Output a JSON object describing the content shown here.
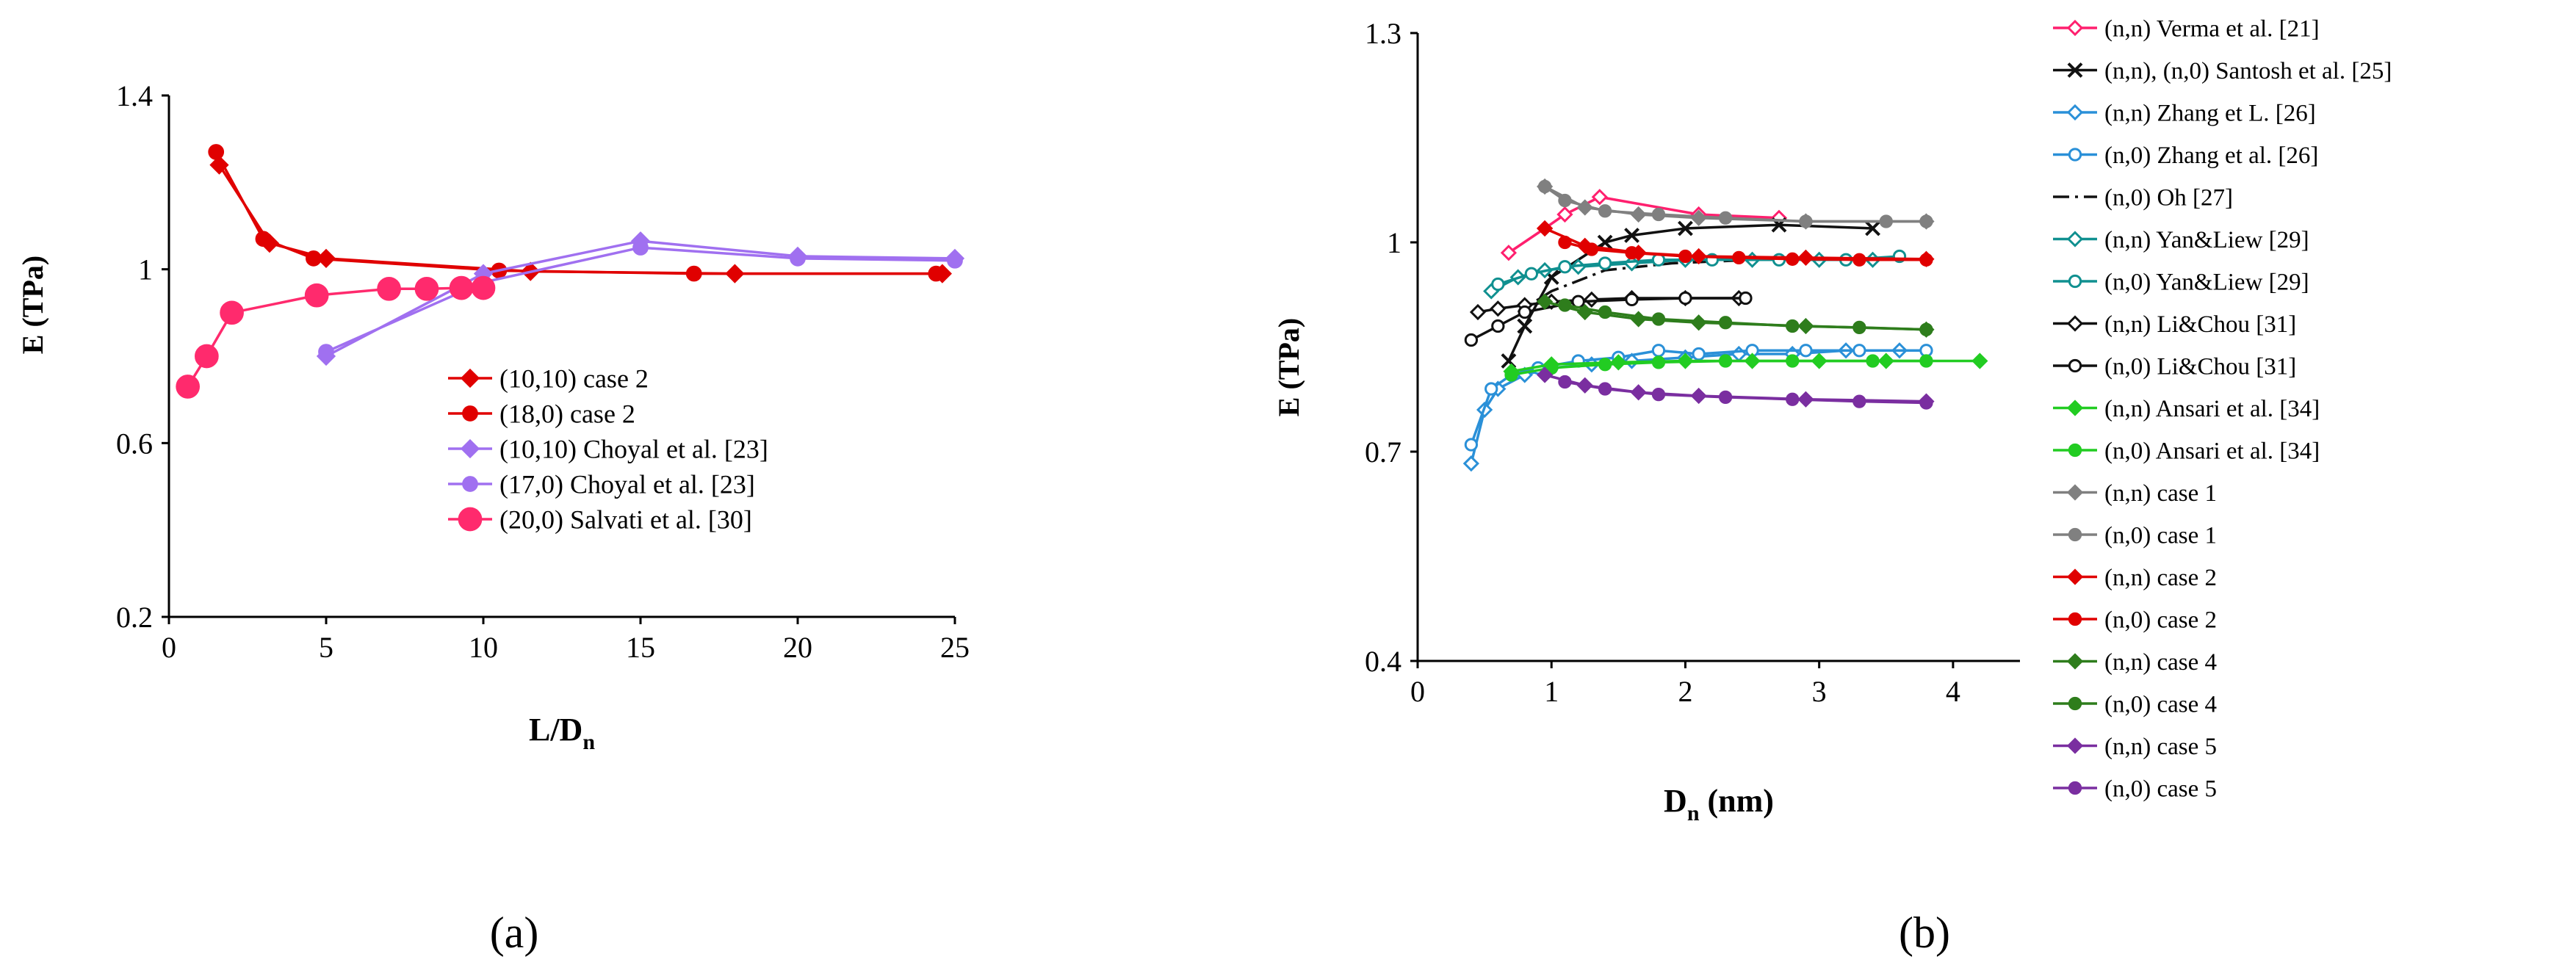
{
  "panels": [
    {
      "label": "(a)",
      "xlabel_main": "L/D",
      "xlabel_sub": "n",
      "ylabel": "E (TPa)",
      "legend_position": "inside-right",
      "chart_data": {
        "type": "line",
        "xlim": [
          0,
          25
        ],
        "ylim": [
          0.2,
          1.4
        ],
        "xticks": [
          0,
          5,
          10,
          15,
          20,
          25
        ],
        "yticks": [
          0.2,
          0.6,
          1,
          1.4
        ],
        "xtick_labels": [
          "0",
          "5",
          "10",
          "15",
          "20",
          "25"
        ],
        "ytick_labels": [
          "0.2",
          "0.6",
          "1",
          "1.4"
        ],
        "grid": false,
        "series": [
          {
            "name": "(10,10) case 2",
            "color": "#e00000",
            "marker": "diamond",
            "x": [
              1.6,
              3.2,
              5.0,
              11.5,
              18.0,
              24.6
            ],
            "y": [
              1.24,
              1.06,
              1.025,
              0.995,
              0.99,
              0.99
            ]
          },
          {
            "name": "(18,0) case 2",
            "color": "#e00000",
            "marker": "circle",
            "x": [
              1.5,
              3.0,
              4.6,
              10.5,
              16.7,
              24.4
            ],
            "y": [
              1.27,
              1.07,
              1.025,
              0.997,
              0.99,
              0.99
            ]
          },
          {
            "name": "(10,10) Choyal et al. [23]",
            "color": "#a070f0",
            "marker": "diamond",
            "x": [
              5,
              10,
              15,
              20,
              25
            ],
            "y": [
              0.8,
              0.99,
              1.065,
              1.03,
              1.025
            ]
          },
          {
            "name": "(17,0)  Choyal et al. [23]",
            "color": "#a070f0",
            "marker": "circle",
            "x": [
              5,
              10,
              15,
              20,
              25
            ],
            "y": [
              0.81,
              0.97,
              1.05,
              1.025,
              1.02
            ]
          },
          {
            "name": "(20,0)  Salvati et al. [30]",
            "color": "#ff2a6d",
            "marker": "circle-large",
            "x": [
              0.6,
              1.2,
              2.0,
              4.7,
              7.0,
              8.2,
              9.3,
              10.0
            ],
            "y": [
              0.73,
              0.8,
              0.9,
              0.94,
              0.955,
              0.955,
              0.957,
              0.957
            ]
          }
        ]
      }
    },
    {
      "label": "(b)",
      "xlabel_main": "D",
      "xlabel_sub": "n",
      "xlabel_suffix": " (nm)",
      "ylabel": "E (TPa)",
      "legend_position": "right",
      "chart_data": {
        "type": "line",
        "xlim": [
          0,
          4.5
        ],
        "ylim": [
          0.4,
          1.3
        ],
        "xticks": [
          0,
          1,
          2,
          3,
          4
        ],
        "yticks": [
          0.4,
          0.7,
          1,
          1.3
        ],
        "xtick_labels": [
          "0",
          "1",
          "2",
          "3",
          "4"
        ],
        "ytick_labels": [
          "0.4",
          "0.7",
          "1",
          "1.3"
        ],
        "grid": false,
        "series": [
          {
            "name": "(n,n) Verma et al. [21]",
            "color": "#ff1f6e",
            "marker": "diamond-open",
            "x": [
              0.68,
              0.95,
              1.1,
              1.36,
              2.1,
              2.7
            ],
            "y": [
              0.985,
              1.02,
              1.04,
              1.065,
              1.04,
              1.035
            ]
          },
          {
            "name": "(n,n), (n,0) Santosh et al. [25]",
            "color": "#111111",
            "marker": "cross",
            "x": [
              0.68,
              0.8,
              1.0,
              1.4,
              1.6,
              2.0,
              2.7,
              3.4
            ],
            "y": [
              0.83,
              0.88,
              0.95,
              1.0,
              1.01,
              1.02,
              1.025,
              1.02
            ]
          },
          {
            "name": "(n,n) Zhang et L. [26]",
            "color": "#2a90d8",
            "marker": "diamond-open",
            "x": [
              0.4,
              0.5,
              0.6,
              0.8,
              1.0,
              1.3,
              1.6,
              2.0,
              2.4,
              2.8,
              3.2,
              3.6
            ],
            "y": [
              0.683,
              0.76,
              0.79,
              0.81,
              0.82,
              0.825,
              0.83,
              0.835,
              0.84,
              0.84,
              0.845,
              0.845
            ]
          },
          {
            "name": "(n,0) Zhang et al. [26]",
            "color": "#2a90d8",
            "marker": "circle-open",
            "x": [
              0.4,
              0.55,
              0.7,
              0.9,
              1.2,
              1.5,
              1.8,
              2.1,
              2.5,
              2.9,
              3.3,
              3.8
            ],
            "y": [
              0.71,
              0.79,
              0.81,
              0.82,
              0.83,
              0.835,
              0.845,
              0.84,
              0.845,
              0.845,
              0.845,
              0.845
            ]
          },
          {
            "name": "(n,0) Oh [27]",
            "color": "#111111",
            "marker": "none",
            "dash": "dashdot",
            "x": [
              0.75,
              1.0,
              1.4,
              1.9,
              2.5,
              3.4
            ],
            "y": [
              0.9,
              0.93,
              0.96,
              0.97,
              0.975,
              0.975
            ]
          },
          {
            "name": "(n,n) Yan&Liew [29]",
            "color": "#109090",
            "marker": "diamond-open",
            "x": [
              0.55,
              0.75,
              0.95,
              1.2,
              1.6,
              2.0,
              2.5,
              3.0,
              3.4
            ],
            "y": [
              0.93,
              0.95,
              0.96,
              0.965,
              0.97,
              0.975,
              0.975,
              0.975,
              0.975
            ]
          },
          {
            "name": "(n,0) Yan&Liew [29]",
            "color": "#109090",
            "marker": "circle-open",
            "x": [
              0.6,
              0.85,
              1.1,
              1.4,
              1.8,
              2.2,
              2.7,
              3.2,
              3.6
            ],
            "y": [
              0.94,
              0.955,
              0.965,
              0.97,
              0.975,
              0.975,
              0.975,
              0.975,
              0.98
            ]
          },
          {
            "name": "(n,n) Li&Chou [31]",
            "color": "#111111",
            "marker": "diamond-open",
            "x": [
              0.45,
              0.6,
              0.8,
              1.0,
              1.3,
              1.6,
              2.0,
              2.4
            ],
            "y": [
              0.9,
              0.905,
              0.91,
              0.915,
              0.918,
              0.92,
              0.92,
              0.92
            ]
          },
          {
            "name": "(n,0) Li&Chou [31]",
            "color": "#111111",
            "marker": "circle-open",
            "x": [
              0.4,
              0.6,
              0.8,
              1.2,
              1.6,
              2.0,
              2.45
            ],
            "y": [
              0.86,
              0.88,
              0.9,
              0.915,
              0.918,
              0.92,
              0.92
            ]
          },
          {
            "name": "(n,n) Ansari et al. [34]",
            "color": "#22cc22",
            "marker": "diamond",
            "x": [
              0.7,
              1.0,
              1.5,
              2.0,
              2.5,
              3.0,
              3.5,
              4.2
            ],
            "y": [
              0.815,
              0.825,
              0.828,
              0.83,
              0.83,
              0.83,
              0.83,
              0.83
            ]
          },
          {
            "name": "(n,0) Ansari et al. [34]",
            "color": "#22cc22",
            "marker": "circle",
            "x": [
              0.7,
              1.0,
              1.4,
              1.8,
              2.3,
              2.8,
              3.4,
              3.8
            ],
            "y": [
              0.81,
              0.82,
              0.825,
              0.828,
              0.83,
              0.83,
              0.83,
              0.83
            ]
          },
          {
            "name": "(n,n) case 1",
            "color": "#808080",
            "marker": "diamond",
            "x": [
              0.95,
              1.25,
              1.65,
              2.1,
              2.9,
              3.8
            ],
            "y": [
              1.08,
              1.05,
              1.04,
              1.035,
              1.03,
              1.03
            ]
          },
          {
            "name": "(n,0) case 1",
            "color": "#808080",
            "marker": "circle",
            "x": [
              0.95,
              1.1,
              1.4,
              1.8,
              2.3,
              2.9,
              3.5,
              3.8
            ],
            "y": [
              1.08,
              1.06,
              1.045,
              1.04,
              1.035,
              1.03,
              1.03,
              1.03
            ]
          },
          {
            "name": "(n,n) case 2",
            "color": "#e00000",
            "marker": "diamond",
            "x": [
              0.95,
              1.25,
              1.65,
              2.1,
              2.9,
              3.8
            ],
            "y": [
              1.02,
              0.995,
              0.985,
              0.98,
              0.978,
              0.976
            ]
          },
          {
            "name": "(n,0) case 2",
            "color": "#e00000",
            "marker": "circle",
            "x": [
              1.1,
              1.3,
              1.6,
              2.0,
              2.4,
              2.8,
              3.3,
              3.8
            ],
            "y": [
              1.0,
              0.99,
              0.985,
              0.98,
              0.978,
              0.976,
              0.975,
              0.975
            ]
          },
          {
            "name": "(n,n) case 4",
            "color": "#2e7d1c",
            "marker": "diamond",
            "x": [
              0.95,
              1.25,
              1.65,
              2.1,
              2.9,
              3.8
            ],
            "y": [
              0.915,
              0.9,
              0.89,
              0.885,
              0.88,
              0.875
            ]
          },
          {
            "name": "(n,0) case 4",
            "color": "#2e7d1c",
            "marker": "circle",
            "x": [
              1.1,
              1.4,
              1.8,
              2.3,
              2.8,
              3.3,
              3.8
            ],
            "y": [
              0.91,
              0.9,
              0.89,
              0.885,
              0.88,
              0.878,
              0.875
            ]
          },
          {
            "name": "(n,n) case 5",
            "color": "#7a2ea0",
            "marker": "diamond",
            "x": [
              0.95,
              1.25,
              1.65,
              2.1,
              2.9,
              3.8
            ],
            "y": [
              0.81,
              0.795,
              0.785,
              0.78,
              0.775,
              0.772
            ]
          },
          {
            "name": "(n,0) case 5",
            "color": "#7a2ea0",
            "marker": "circle",
            "x": [
              1.1,
              1.4,
              1.8,
              2.3,
              2.8,
              3.3,
              3.8
            ],
            "y": [
              0.8,
              0.79,
              0.782,
              0.778,
              0.775,
              0.772,
              0.77
            ]
          }
        ]
      }
    }
  ]
}
